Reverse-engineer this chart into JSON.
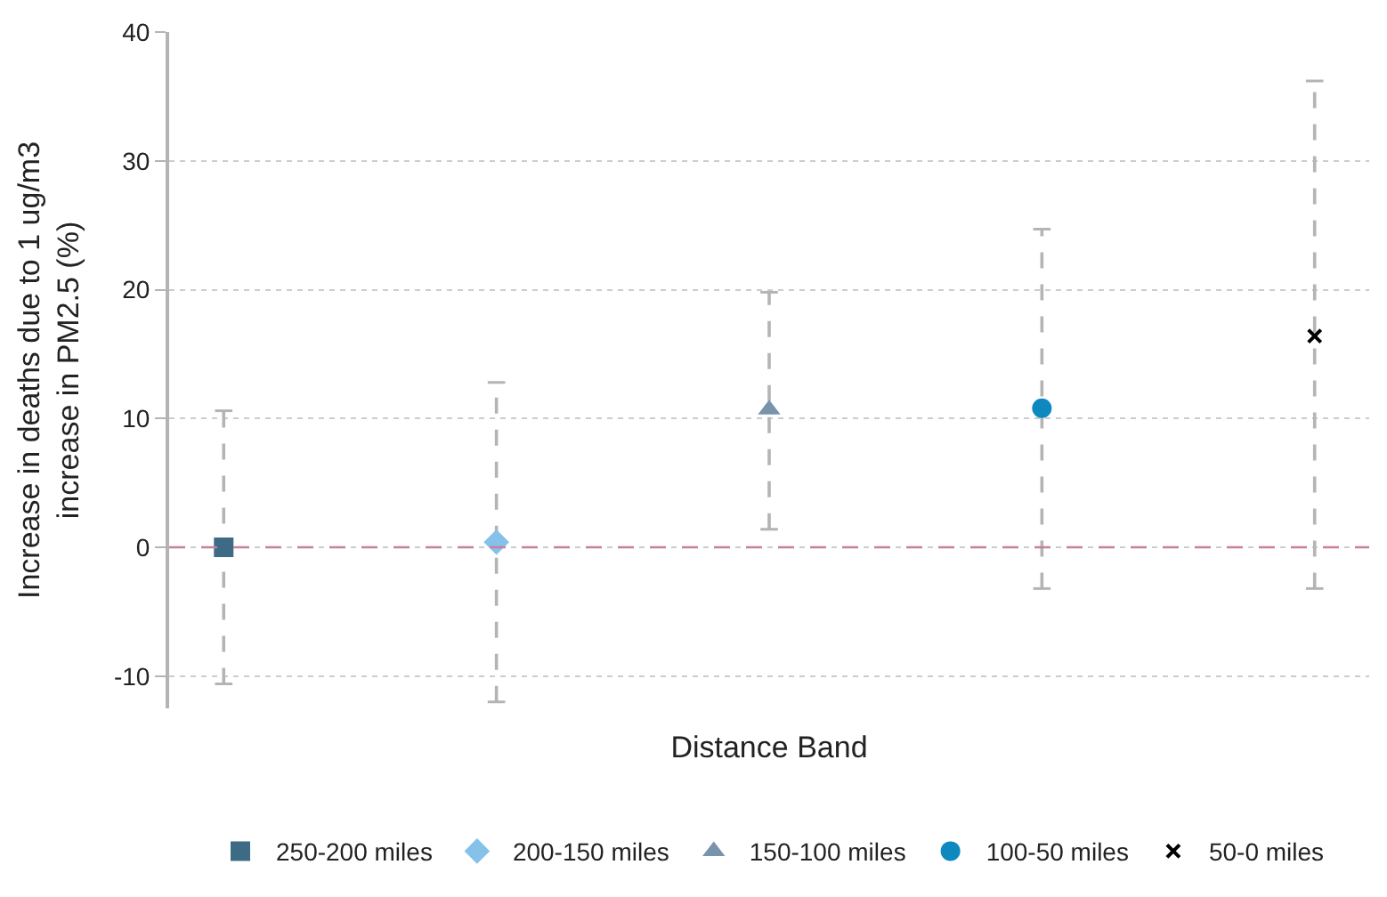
{
  "chart_data": {
    "type": "scatter",
    "xlabel": "Distance Band",
    "ylabel": "Increase in deaths due to 1 ug/m3\nincrease in PM2.5 (%)",
    "categories": [
      null,
      null,
      null,
      null,
      null
    ],
    "series": [
      {
        "name": "250-200 miles",
        "color": "#3d6a85",
        "marker": "square",
        "values": [
          0,
          null,
          null,
          null,
          null
        ],
        "errors": [
          [
            -10.6,
            10.6
          ],
          null,
          null,
          null,
          null
        ]
      },
      {
        "name": "200-150 miles",
        "color": "#85c1e9",
        "marker": "diamond",
        "values": [
          null,
          0.4,
          null,
          null,
          null
        ],
        "errors": [
          null,
          [
            -12.0,
            12.8
          ],
          null,
          null,
          null
        ]
      },
      {
        "name": "150-100 miles",
        "color": "#7a93ad",
        "marker": "triangle",
        "values": [
          null,
          null,
          10.7,
          null,
          null
        ],
        "errors": [
          null,
          null,
          [
            1.4,
            19.8
          ],
          null,
          null
        ]
      },
      {
        "name": "100-50 miles",
        "color": "#0e89c0",
        "marker": "circle",
        "values": [
          null,
          null,
          null,
          10.8,
          null
        ],
        "errors": [
          null,
          null,
          null,
          [
            -3.2,
            24.7
          ],
          null
        ]
      },
      {
        "name": "50-0 miles",
        "color": "#000000",
        "marker": "cross",
        "values": [
          null,
          null,
          null,
          null,
          16.4
        ],
        "errors": [
          null,
          null,
          null,
          null,
          [
            -3.2,
            36.2
          ]
        ]
      }
    ],
    "ylim": [
      -12.5,
      40
    ],
    "yticks": [
      -10,
      0,
      10,
      20,
      30,
      40
    ],
    "grid": "y",
    "legend": "bottom",
    "ref_lines": [
      {
        "axis": "y",
        "value": 0,
        "color": "#c77fa0",
        "line_style": "dashed"
      }
    ]
  }
}
